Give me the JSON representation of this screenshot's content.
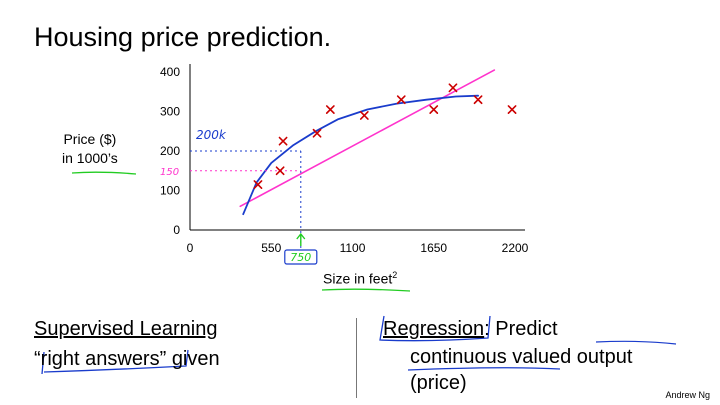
{
  "slide": {
    "title": "Housing price prediction.",
    "author": "Andrew Ng"
  },
  "chart_data": {
    "type": "scatter",
    "ylabel_line1": "Price ($)",
    "ylabel_line2": "in 1000’s",
    "xlabel_text": "Size in feet",
    "xlabel_sup": "2",
    "x_ticks": [
      "0",
      "550",
      "1100",
      "1650",
      "2200"
    ],
    "y_ticks": [
      "0",
      "100",
      "200",
      "300",
      "400"
    ],
    "xlim": [
      0,
      2200
    ],
    "ylim": [
      0,
      400
    ],
    "points": [
      {
        "x": 460,
        "y": 115
      },
      {
        "x": 610,
        "y": 150
      },
      {
        "x": 630,
        "y": 225
      },
      {
        "x": 860,
        "y": 245
      },
      {
        "x": 950,
        "y": 305
      },
      {
        "x": 1180,
        "y": 290
      },
      {
        "x": 1430,
        "y": 330
      },
      {
        "x": 1650,
        "y": 305
      },
      {
        "x": 1780,
        "y": 360
      },
      {
        "x": 1950,
        "y": 330
      },
      {
        "x": 2180,
        "y": 305
      }
    ],
    "linear_fit": [
      [
        340,
        60
      ],
      [
        2060,
        405
      ]
    ],
    "quadratic_fit": [
      [
        360,
        40
      ],
      [
        450,
        120
      ],
      [
        550,
        170
      ],
      [
        700,
        215
      ],
      [
        850,
        250
      ],
      [
        1000,
        280
      ],
      [
        1200,
        305
      ],
      [
        1400,
        320
      ],
      [
        1600,
        330
      ],
      [
        1800,
        338
      ],
      [
        1950,
        340
      ]
    ],
    "annotations": {
      "query_x": 750,
      "query_label": "750",
      "pred_high": 200,
      "pred_high_label": "200k",
      "pred_low": 150,
      "pred_low_label": "150"
    },
    "colors": {
      "points": "#cc0000",
      "linear_fit": "#ff33cc",
      "quadratic_fit": "#1a3ccc",
      "query": "#22cc22",
      "pen_blue": "#1a3ccc"
    }
  },
  "bottom": {
    "left_line1": "Supervised Learning",
    "left_line2": "“right answers” given",
    "right_line1_key": "Regression",
    "right_line1_rest": ": Predict",
    "right_line2": "continuous valued output",
    "right_line3": "(price)"
  }
}
